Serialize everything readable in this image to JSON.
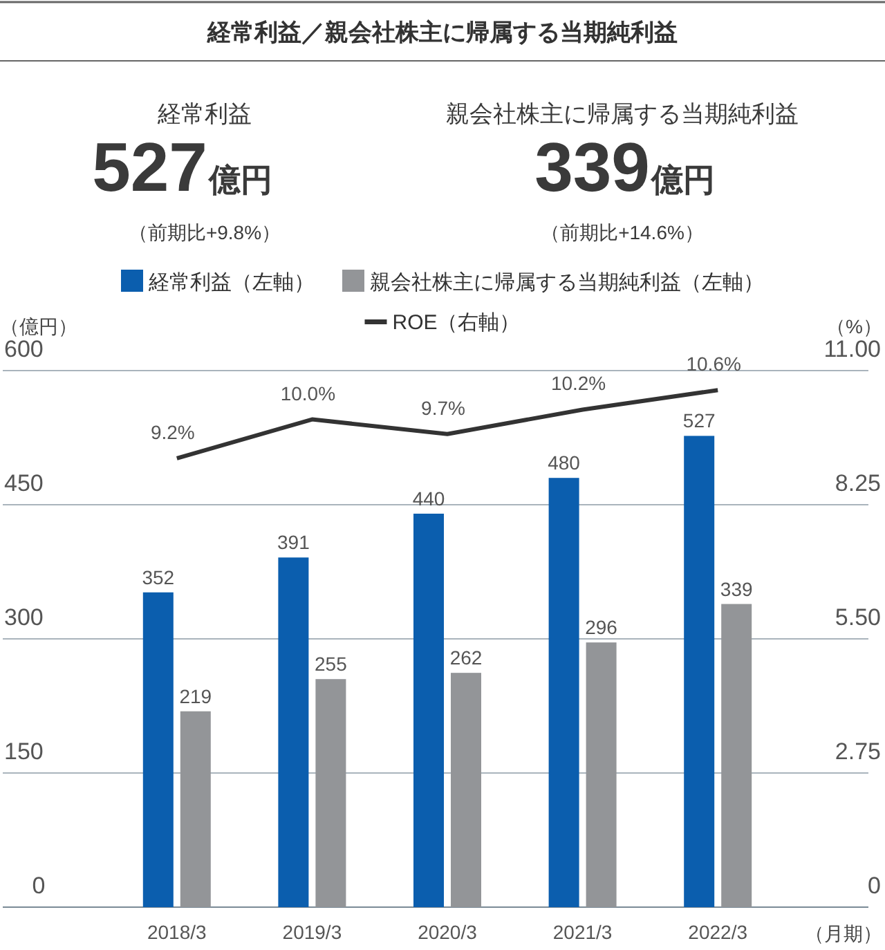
{
  "chart_data": {
    "type": "bar",
    "title": "経常利益／親会社株主に帰属する当期純利益",
    "annotations": [
      "経常利益",
      "527",
      "億円",
      "（前期比+9.8%）",
      "親会社株主に帰属する当期純利益",
      "339",
      "億円",
      "（前期比+14.6%）"
    ],
    "ylabel": "（億円）",
    "y2label": "（%）",
    "xlabel": "（月期）",
    "categories": [
      "2018/3",
      "2019/3",
      "2020/3",
      "2021/3",
      "2022/3"
    ],
    "series": [
      {
        "name": "経常利益（左軸）",
        "color": "#0b5eae",
        "values": [
          352,
          391,
          440,
          480,
          527
        ]
      },
      {
        "name": "親会社株主に帰属する当期純利益（左軸）",
        "color": "#939598",
        "values": [
          219,
          255,
          262,
          296,
          339
        ]
      },
      {
        "name": "ROE（右軸）",
        "type": "line",
        "axis": "y2",
        "color": "#333333",
        "values": [
          9.2,
          10.0,
          9.7,
          10.2,
          10.6
        ],
        "value_labels": [
          "9.2%",
          "10.0%",
          "9.7%",
          "10.2%",
          "10.6%"
        ]
      }
    ],
    "ylim": [
      0,
      600
    ],
    "yticks": [
      0,
      150,
      300,
      450,
      600
    ],
    "y2lim": [
      0,
      11
    ],
    "y2ticks": [
      0,
      {
        "value": 2.75,
        "label": "2.75"
      },
      {
        "value": 5.5,
        "label": "5.50"
      },
      {
        "value": 8.25,
        "label": "8.25"
      },
      {
        "value": 11,
        "label": "11.00"
      }
    ],
    "grid": "y",
    "legend": "top",
    "data_labels": true
  }
}
